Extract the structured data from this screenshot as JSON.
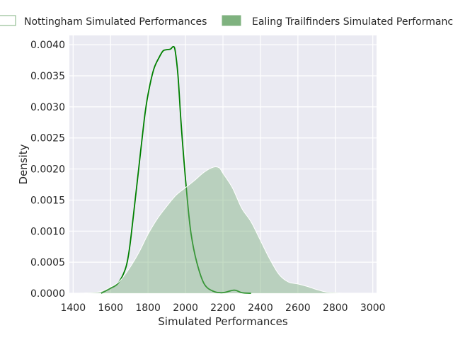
{
  "chart_data": {
    "type": "area",
    "title": "",
    "xlabel": "Simulated Performances",
    "ylabel": "Density",
    "xlim": [
      1380,
      3020
    ],
    "ylim": [
      0,
      0.00415
    ],
    "x_ticks": [
      1400,
      1600,
      1800,
      2000,
      2200,
      2400,
      2600,
      2800,
      3000
    ],
    "y_ticks": [
      0,
      0.0005,
      0.001,
      0.0015,
      0.002,
      0.0025,
      0.003,
      0.0035,
      0.004
    ],
    "x_tick_labels": [
      "1400",
      "1600",
      "1800",
      "2000",
      "2200",
      "2400",
      "2600",
      "2800",
      "3000"
    ],
    "y_tick_labels": [
      "0.0000",
      "0.0005",
      "0.0010",
      "0.0015",
      "0.0020",
      "0.0025",
      "0.0030",
      "0.0035",
      "0.0040"
    ],
    "grid": true,
    "legend_position": "top",
    "series": [
      {
        "name": "Nottingham Simulated Performances",
        "color": "#008000",
        "style": "line",
        "x": [
          1550,
          1600,
          1640,
          1680,
          1700,
          1720,
          1750,
          1780,
          1800,
          1830,
          1860,
          1880,
          1900,
          1920,
          1935,
          1945,
          1960,
          1975,
          1990,
          2010,
          2030,
          2060,
          2100,
          2150,
          2200,
          2260,
          2300,
          2350
        ],
        "y": [
          0,
          8e-05,
          0.00016,
          0.0004,
          0.0007,
          0.0012,
          0.002,
          0.0028,
          0.0032,
          0.0036,
          0.0038,
          0.0039,
          0.00392,
          0.00393,
          0.00397,
          0.0039,
          0.0035,
          0.0028,
          0.0022,
          0.0015,
          0.00095,
          0.0005,
          0.00015,
          3e-05,
          1e-05,
          5e-05,
          1e-05,
          0
        ]
      },
      {
        "name": "Ealing Trailfinders Simulated Performances",
        "color": "#7fb27f",
        "style": "filled",
        "x": [
          1420,
          1500,
          1550,
          1600,
          1650,
          1700,
          1750,
          1800,
          1850,
          1900,
          1950,
          2000,
          2050,
          2100,
          2150,
          2180,
          2200,
          2250,
          2300,
          2350,
          2400,
          2450,
          2500,
          2550,
          2600,
          2650,
          2700,
          2750,
          2800,
          2850,
          2920
        ],
        "y": [
          0,
          1e-05,
          3e-05,
          0.0001,
          0.0002,
          0.0004,
          0.00065,
          0.00095,
          0.0012,
          0.0014,
          0.00158,
          0.0017,
          0.00182,
          0.00195,
          0.00203,
          0.00202,
          0.00193,
          0.0017,
          0.00137,
          0.00115,
          0.00085,
          0.00055,
          0.0003,
          0.00018,
          0.00015,
          0.00011,
          6e-05,
          2e-05,
          1e-05,
          0,
          0
        ]
      }
    ]
  }
}
